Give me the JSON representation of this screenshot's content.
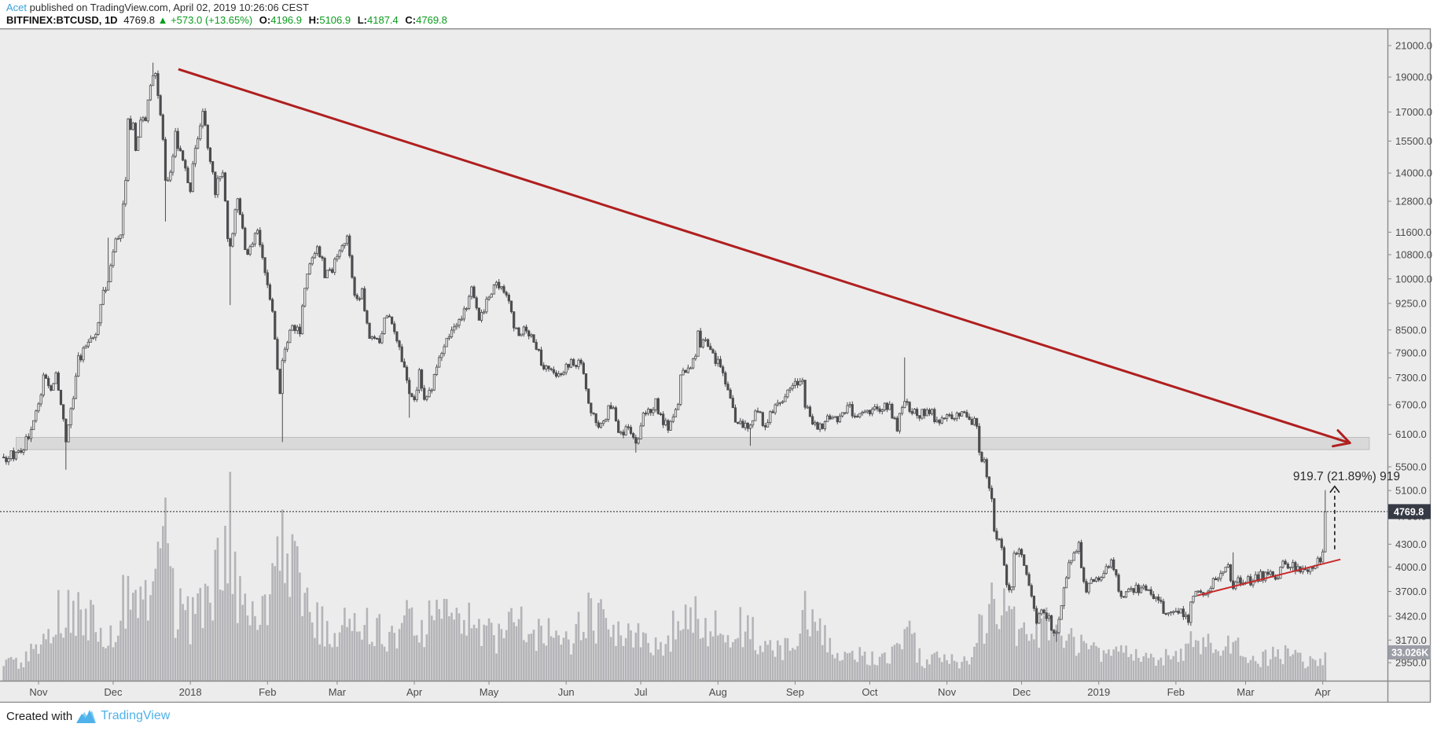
{
  "header": {
    "author": "Acet",
    "published_line": "published on TradingView.com, April 02, 2019 10:26:06 CEST",
    "symbol": "BITFINEX:BTCUSD, 1D",
    "last_price": "4769.8",
    "change_arrow": "▲",
    "change": "+573.0 (+13.65%)",
    "o_label": "O:",
    "o_value": "4196.9",
    "h_label": "H:",
    "h_value": "5106.9",
    "l_label": "L:",
    "l_value": "4187.4",
    "c_label": "C:",
    "c_value": "4769.8"
  },
  "footer": {
    "created_with": "Created with",
    "brand": "TradingView"
  },
  "colors": {
    "bg": "#ececec",
    "candle": "#4d4d50",
    "volume": "#b4b4b8",
    "trend_red": "#b01f1f",
    "support_red": "#c92a2a",
    "band_fill": "#d9d9d9",
    "band_border": "#bdbdbd",
    "axis_border": "#8a8a8a",
    "axis_text": "#4a4a4a",
    "price_box_bg": "#363a45",
    "volume_box_bg": "#9b9ea6",
    "accent_green": "#0b9c1d",
    "author_blue": "#3aa0d9",
    "brand_blue": "#4fb2ea",
    "annotation_text": "#2a2a2a"
  },
  "chart_data": {
    "type": "candlestick",
    "title": "BITFINEX:BTCUSD, 1D",
    "scale": "logarithmic",
    "grid": "off",
    "legend_position": "none",
    "x_range": [
      "Oct 2017",
      "Apr 2019"
    ],
    "y_range": [
      2950,
      21000
    ],
    "y_axis_ticks": [
      [
        "21000.0",
        21000
      ],
      [
        "19000.0",
        19000
      ],
      [
        "17000.0",
        17000
      ],
      [
        "15500.0",
        15500
      ],
      [
        "14000.0",
        14000
      ],
      [
        "12800.0",
        12800
      ],
      [
        "11600.0",
        11600
      ],
      [
        "10800.0",
        10800
      ],
      [
        "10000.0",
        10000
      ],
      [
        "9250.0",
        9250
      ],
      [
        "8500.0",
        8500
      ],
      [
        "7900.0",
        7900
      ],
      [
        "7300.0",
        7300
      ],
      [
        "6700.0",
        6700
      ],
      [
        "6100.0",
        6100
      ],
      [
        "5500.0",
        5500
      ],
      [
        "5100.0",
        5100
      ],
      [
        "4700.0",
        4700
      ],
      [
        "4300.0",
        4300
      ],
      [
        "4000.0",
        4000
      ],
      [
        "3700.0",
        3700
      ],
      [
        "3420.0",
        3420
      ],
      [
        "3170.0",
        3170
      ],
      [
        "2950.0",
        2950
      ]
    ],
    "x_axis_labels": [
      [
        "Nov",
        6
      ],
      [
        "Dec",
        36
      ],
      [
        "2018",
        67
      ],
      [
        "Feb",
        98
      ],
      [
        "Mar",
        126
      ],
      [
        "Apr",
        157
      ],
      [
        "May",
        187
      ],
      [
        "Jun",
        218
      ],
      [
        "Jul",
        248
      ],
      [
        "Aug",
        279
      ],
      [
        "Sep",
        310
      ],
      [
        "Oct",
        340
      ],
      [
        "Nov",
        371
      ],
      [
        "Dec",
        401
      ],
      [
        "2019",
        432
      ],
      [
        "Feb",
        463
      ],
      [
        "Mar",
        491
      ],
      [
        "Apr",
        522
      ]
    ],
    "day0_date": "2017-10-26",
    "price_anchors": [
      [
        -8,
        5600
      ],
      [
        -5,
        5700
      ],
      [
        -2,
        5780
      ],
      [
        0,
        5900
      ],
      [
        3,
        6150
      ],
      [
        6,
        6750
      ],
      [
        8,
        7250
      ],
      [
        11,
        7050
      ],
      [
        13,
        7450
      ],
      [
        15,
        6650
      ],
      [
        17,
        5950
      ],
      [
        19,
        6550
      ],
      [
        22,
        7750
      ],
      [
        25,
        8050
      ],
      [
        29,
        8250
      ],
      [
        31,
        9350
      ],
      [
        34,
        9900
      ],
      [
        36,
        10950
      ],
      [
        39,
        11650
      ],
      [
        41,
        13750
      ],
      [
        42,
        16500
      ],
      [
        44,
        16200
      ],
      [
        45,
        14900
      ],
      [
        47,
        16650
      ],
      [
        49,
        16450
      ],
      [
        52,
        19350
      ],
      [
        53,
        18900
      ],
      [
        55,
        16600
      ],
      [
        56,
        15600
      ],
      [
        57,
        13850
      ],
      [
        59,
        13900
      ],
      [
        61,
        15800
      ],
      [
        64,
        14400
      ],
      [
        67,
        13400
      ],
      [
        69,
        15200
      ],
      [
        72,
        17150
      ],
      [
        74,
        15000
      ],
      [
        77,
        13250
      ],
      [
        80,
        14200
      ],
      [
        82,
        11200
      ],
      [
        83,
        11100
      ],
      [
        86,
        12900
      ],
      [
        89,
        10900
      ],
      [
        92,
        11150
      ],
      [
        94,
        11800
      ],
      [
        97,
        10100
      ],
      [
        100,
        8900
      ],
      [
        103,
        6950
      ],
      [
        104,
        7750
      ],
      [
        108,
        8600
      ],
      [
        111,
        8500
      ],
      [
        114,
        10100
      ],
      [
        118,
        11250
      ],
      [
        121,
        10150
      ],
      [
        124,
        10300
      ],
      [
        126,
        10900
      ],
      [
        130,
        11450
      ],
      [
        132,
        9900
      ],
      [
        134,
        9250
      ],
      [
        136,
        9550
      ],
      [
        139,
        8250
      ],
      [
        143,
        8200
      ],
      [
        146,
        8950
      ],
      [
        149,
        8550
      ],
      [
        152,
        7800
      ],
      [
        155,
        6900
      ],
      [
        157,
        6850
      ],
      [
        159,
        7400
      ],
      [
        161,
        6800
      ],
      [
        164,
        7050
      ],
      [
        168,
        7900
      ],
      [
        171,
        8350
      ],
      [
        176,
        8850
      ],
      [
        180,
        9650
      ],
      [
        183,
        8900
      ],
      [
        186,
        9250
      ],
      [
        189,
        9750
      ],
      [
        191,
        9850
      ],
      [
        195,
        9300
      ],
      [
        197,
        8450
      ],
      [
        201,
        8500
      ],
      [
        205,
        8250
      ],
      [
        209,
        7550
      ],
      [
        213,
        7350
      ],
      [
        215,
        7500
      ],
      [
        218,
        7500
      ],
      [
        220,
        7700
      ],
      [
        224,
        7650
      ],
      [
        227,
        6750
      ],
      [
        230,
        6300
      ],
      [
        233,
        6400
      ],
      [
        237,
        6750
      ],
      [
        239,
        6050
      ],
      [
        241,
        6150
      ],
      [
        244,
        6150
      ],
      [
        246,
        5850
      ],
      [
        248,
        6350
      ],
      [
        251,
        6550
      ],
      [
        254,
        6750
      ],
      [
        257,
        6350
      ],
      [
        259,
        6250
      ],
      [
        263,
        6700
      ],
      [
        264,
        7350
      ],
      [
        267,
        7450
      ],
      [
        270,
        7750
      ],
      [
        271,
        8400
      ],
      [
        272,
        8150
      ],
      [
        275,
        8200
      ],
      [
        278,
        7750
      ],
      [
        281,
        7450
      ],
      [
        284,
        6900
      ],
      [
        286,
        6300
      ],
      [
        289,
        6250
      ],
      [
        292,
        6200
      ],
      [
        295,
        6600
      ],
      [
        298,
        6250
      ],
      [
        301,
        6550
      ],
      [
        305,
        6700
      ],
      [
        307,
        7050
      ],
      [
        310,
        7200
      ],
      [
        313,
        7350
      ],
      [
        314,
        6700
      ],
      [
        317,
        6250
      ],
      [
        321,
        6300
      ],
      [
        324,
        6500
      ],
      [
        327,
        6350
      ],
      [
        331,
        6700
      ],
      [
        334,
        6450
      ],
      [
        337,
        6650
      ],
      [
        340,
        6600
      ],
      [
        344,
        6600
      ],
      [
        348,
        6650
      ],
      [
        351,
        6250
      ],
      [
        354,
        6750
      ],
      [
        357,
        6550
      ],
      [
        361,
        6500
      ],
      [
        365,
        6500
      ],
      [
        368,
        6300
      ],
      [
        371,
        6400
      ],
      [
        374,
        6450
      ],
      [
        377,
        6550
      ],
      [
        380,
        6400
      ],
      [
        383,
        6350
      ],
      [
        384,
        5750
      ],
      [
        386,
        5550
      ],
      [
        389,
        4950
      ],
      [
        390,
        4450
      ],
      [
        393,
        4300
      ],
      [
        395,
        3780
      ],
      [
        397,
        3750
      ],
      [
        398,
        4250
      ],
      [
        401,
        4150
      ],
      [
        403,
        3900
      ],
      [
        406,
        3550
      ],
      [
        407,
        3400
      ],
      [
        410,
        3500
      ],
      [
        414,
        3250
      ],
      [
        415,
        3200
      ],
      [
        417,
        3550
      ],
      [
        419,
        3900
      ],
      [
        420,
        4100
      ],
      [
        424,
        4280
      ],
      [
        426,
        3800
      ],
      [
        427,
        3650
      ],
      [
        429,
        3900
      ],
      [
        432,
        3850
      ],
      [
        437,
        4080
      ],
      [
        441,
        3650
      ],
      [
        445,
        3700
      ],
      [
        450,
        3750
      ],
      [
        454,
        3600
      ],
      [
        459,
        3480
      ],
      [
        462,
        3480
      ],
      [
        466,
        3460
      ],
      [
        468,
        3400
      ],
      [
        470,
        3650
      ],
      [
        474,
        3650
      ],
      [
        480,
        3900
      ],
      [
        484,
        3980
      ],
      [
        486,
        3780
      ],
      [
        489,
        3820
      ],
      [
        492,
        3820
      ],
      [
        495,
        3860
      ],
      [
        500,
        3920
      ],
      [
        504,
        3870
      ],
      [
        506,
        4030
      ],
      [
        511,
        3980
      ],
      [
        515,
        3940
      ],
      [
        518,
        4020
      ],
      [
        521,
        4100
      ],
      [
        522,
        4150
      ],
      [
        523,
        4769.8
      ]
    ],
    "wick_events": [
      {
        "d": 17,
        "low": 5450
      },
      {
        "d": 34,
        "high": 11400
      },
      {
        "d": 52,
        "high": 19891
      },
      {
        "d": 57,
        "low": 12000
      },
      {
        "d": 83,
        "low": 9200
      },
      {
        "d": 104,
        "low": 5950
      },
      {
        "d": 155,
        "low": 6430
      },
      {
        "d": 246,
        "low": 5755
      },
      {
        "d": 292,
        "low": 5880
      },
      {
        "d": 354,
        "high": 7788
      },
      {
        "d": 415,
        "low": 3152
      },
      {
        "d": 486,
        "high": 4190
      }
    ],
    "last_candle": {
      "open": 4196.9,
      "high": 5106.9,
      "low": 4187.4,
      "close": 4769.8
    },
    "volume_anchors_kbtc": [
      [
        -8,
        20
      ],
      [
        0,
        25
      ],
      [
        17,
        95
      ],
      [
        31,
        65
      ],
      [
        36,
        70
      ],
      [
        42,
        110
      ],
      [
        52,
        95
      ],
      [
        57,
        230
      ],
      [
        61,
        90
      ],
      [
        67,
        75
      ],
      [
        72,
        90
      ],
      [
        77,
        120
      ],
      [
        83,
        200
      ],
      [
        86,
        110
      ],
      [
        94,
        70
      ],
      [
        100,
        120
      ],
      [
        104,
        187
      ],
      [
        114,
        90
      ],
      [
        118,
        75
      ],
      [
        126,
        60
      ],
      [
        130,
        80
      ],
      [
        134,
        90
      ],
      [
        139,
        70
      ],
      [
        146,
        55
      ],
      [
        155,
        80
      ],
      [
        157,
        60
      ],
      [
        168,
        90
      ],
      [
        180,
        75
      ],
      [
        191,
        55
      ],
      [
        197,
        70
      ],
      [
        209,
        60
      ],
      [
        218,
        45
      ],
      [
        227,
        80
      ],
      [
        239,
        70
      ],
      [
        246,
        60
      ],
      [
        248,
        45
      ],
      [
        257,
        50
      ],
      [
        264,
        75
      ],
      [
        271,
        80
      ],
      [
        284,
        55
      ],
      [
        286,
        70
      ],
      [
        292,
        60
      ],
      [
        301,
        40
      ],
      [
        310,
        45
      ],
      [
        314,
        90
      ],
      [
        317,
        70
      ],
      [
        327,
        35
      ],
      [
        340,
        30
      ],
      [
        348,
        25
      ],
      [
        354,
        70
      ],
      [
        361,
        25
      ],
      [
        371,
        30
      ],
      [
        380,
        20
      ],
      [
        384,
        60
      ],
      [
        389,
        100
      ],
      [
        390,
        95
      ],
      [
        395,
        80
      ],
      [
        398,
        70
      ],
      [
        401,
        50
      ],
      [
        407,
        65
      ],
      [
        415,
        75
      ],
      [
        420,
        60
      ],
      [
        424,
        45
      ],
      [
        427,
        50
      ],
      [
        432,
        35
      ],
      [
        437,
        40
      ],
      [
        441,
        45
      ],
      [
        450,
        25
      ],
      [
        459,
        30
      ],
      [
        468,
        40
      ],
      [
        470,
        50
      ],
      [
        480,
        45
      ],
      [
        486,
        55
      ],
      [
        491,
        30
      ],
      [
        495,
        25
      ],
      [
        500,
        30
      ],
      [
        506,
        35
      ],
      [
        511,
        30
      ],
      [
        515,
        25
      ],
      [
        519,
        20
      ],
      [
        522,
        25
      ],
      [
        523,
        33.026
      ]
    ],
    "current_price_line": {
      "value": 4769.8,
      "label": "4769.8"
    },
    "volume_label": "33.026K",
    "annotations": {
      "downtrend_line": {
        "d1": 62.2,
        "price1": 19480,
        "d2": 532.9,
        "price2": 5934
      },
      "support_line": {
        "d1": 471.6,
        "price1": 3652,
        "d2": 529.1,
        "price2": 4097
      },
      "supply_zone": {
        "d1": -3,
        "d2": 540.7,
        "price_top": 6040,
        "price_bottom": 5810
      },
      "range_label": "919.7 (21.89%) 919",
      "range_arrow": {
        "d": 526.8,
        "price_from": 4232,
        "price_to": 5170
      }
    }
  }
}
